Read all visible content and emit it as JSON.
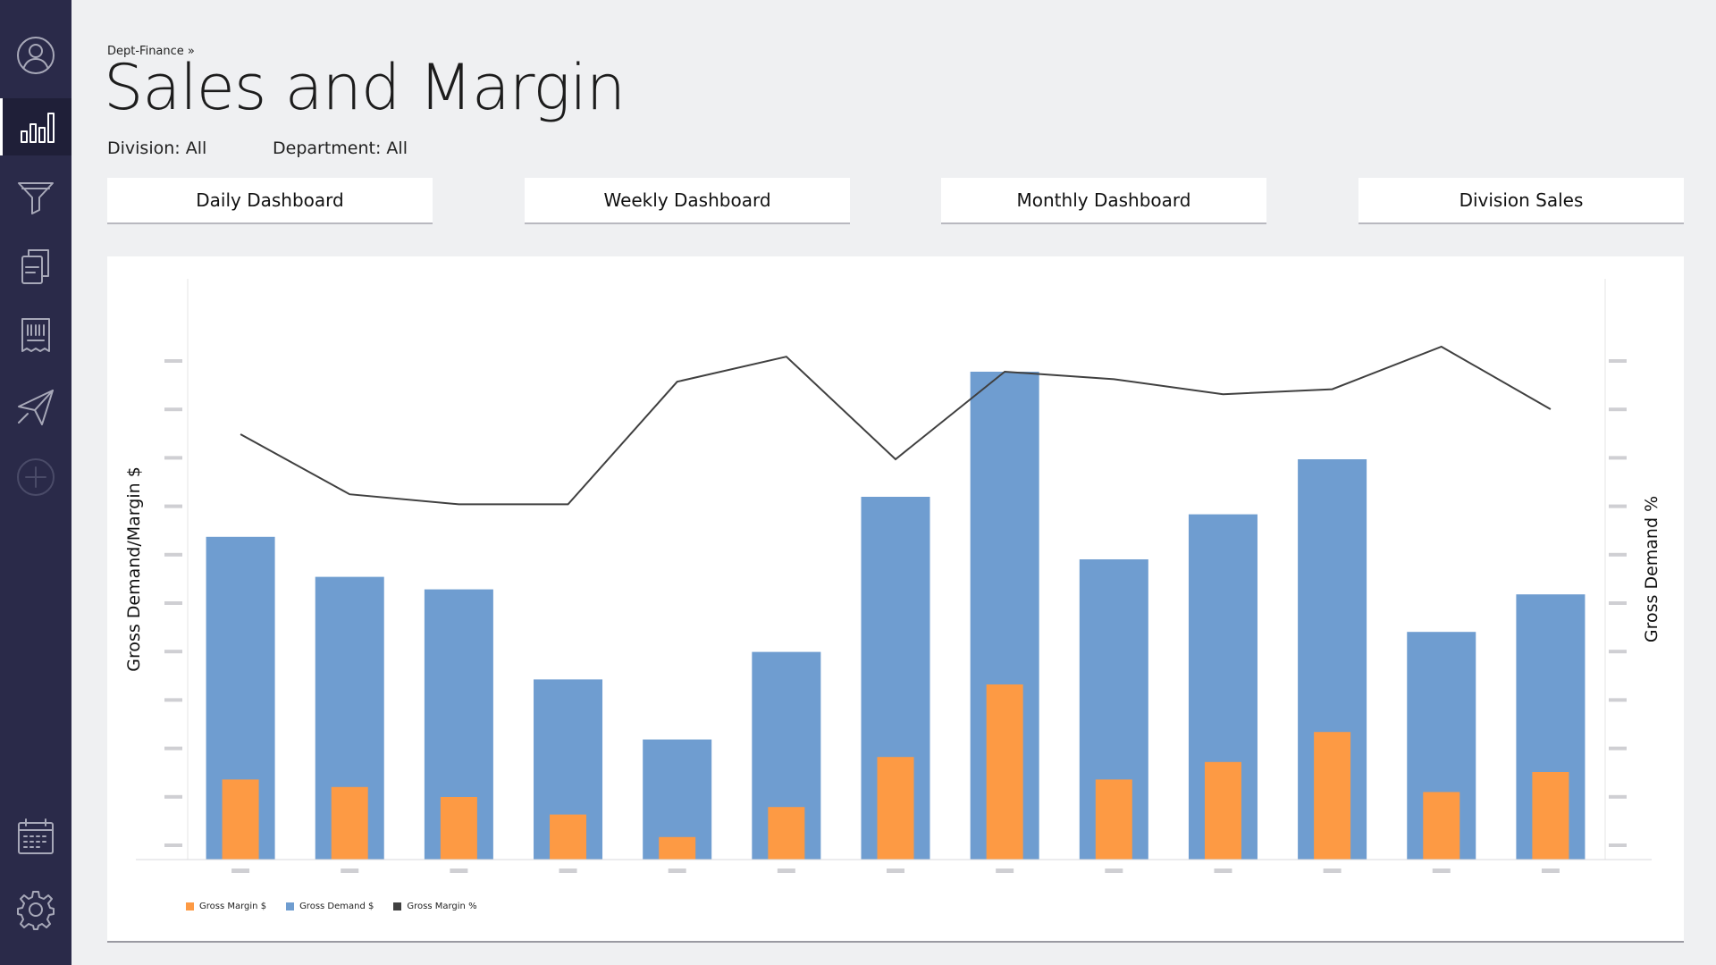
{
  "sidebar": {
    "items": [
      {
        "icon": "user-icon",
        "name": "sidebar-item-profile"
      },
      {
        "icon": "bar-chart-icon",
        "name": "sidebar-item-analytics",
        "active": true
      },
      {
        "icon": "funnel-icon",
        "name": "sidebar-item-filter"
      },
      {
        "icon": "documents-icon",
        "name": "sidebar-item-documents"
      },
      {
        "icon": "receipt-icon",
        "name": "sidebar-item-receipts"
      },
      {
        "icon": "send-icon",
        "name": "sidebar-item-send"
      },
      {
        "icon": "add-circle-icon",
        "name": "sidebar-item-add",
        "disabled": true
      },
      {
        "icon": "calendar-icon",
        "name": "sidebar-item-calendar"
      },
      {
        "icon": "gear-icon",
        "name": "sidebar-item-settings"
      }
    ]
  },
  "header": {
    "breadcrumb": "Dept-Finance »",
    "title": "Sales and Margin",
    "filters": {
      "division": "Division: All",
      "department": "Department: All"
    }
  },
  "tabs": [
    {
      "label": "Daily Dashboard"
    },
    {
      "label": "Weekly Dashboard"
    },
    {
      "label": "Monthly Dashboard"
    },
    {
      "label": "Division Sales"
    }
  ],
  "colors": {
    "gross_margin": "#fd9a44",
    "gross_demand": "#6f9dd0",
    "gross_margin_pct": "#404040",
    "sidebar": "#2a2a49",
    "background": "#eff0f2"
  },
  "chart_data": {
    "type": "bar",
    "ylabel": "Gross Demand/Margin $",
    "y2label": "Gross Demand %",
    "x_tick_labels_visible": false,
    "y_tick_labels_visible": false,
    "ylim": [
      0,
      12
    ],
    "y2lim": [
      0,
      12
    ],
    "grid": false,
    "legend_position": "bottom-left",
    "series": [
      {
        "name": "Gross Margin $",
        "kind": "bar",
        "values": [
          1.6,
          1.45,
          1.25,
          0.9,
          0.45,
          1.05,
          2.05,
          3.5,
          1.6,
          1.95,
          2.55,
          1.35,
          1.75
        ]
      },
      {
        "name": "Gross Demand $",
        "kind": "bar",
        "values": [
          6.45,
          5.65,
          5.4,
          3.6,
          2.4,
          4.15,
          7.25,
          9.75,
          6.0,
          6.9,
          8.0,
          4.55,
          5.3
        ]
      },
      {
        "name": "Gross Margin %",
        "kind": "line",
        "axis": "right",
        "values": [
          8.5,
          7.3,
          7.1,
          7.1,
          9.55,
          10.05,
          8.0,
          9.75,
          9.6,
          9.3,
          9.4,
          10.25,
          9.0
        ]
      }
    ]
  }
}
